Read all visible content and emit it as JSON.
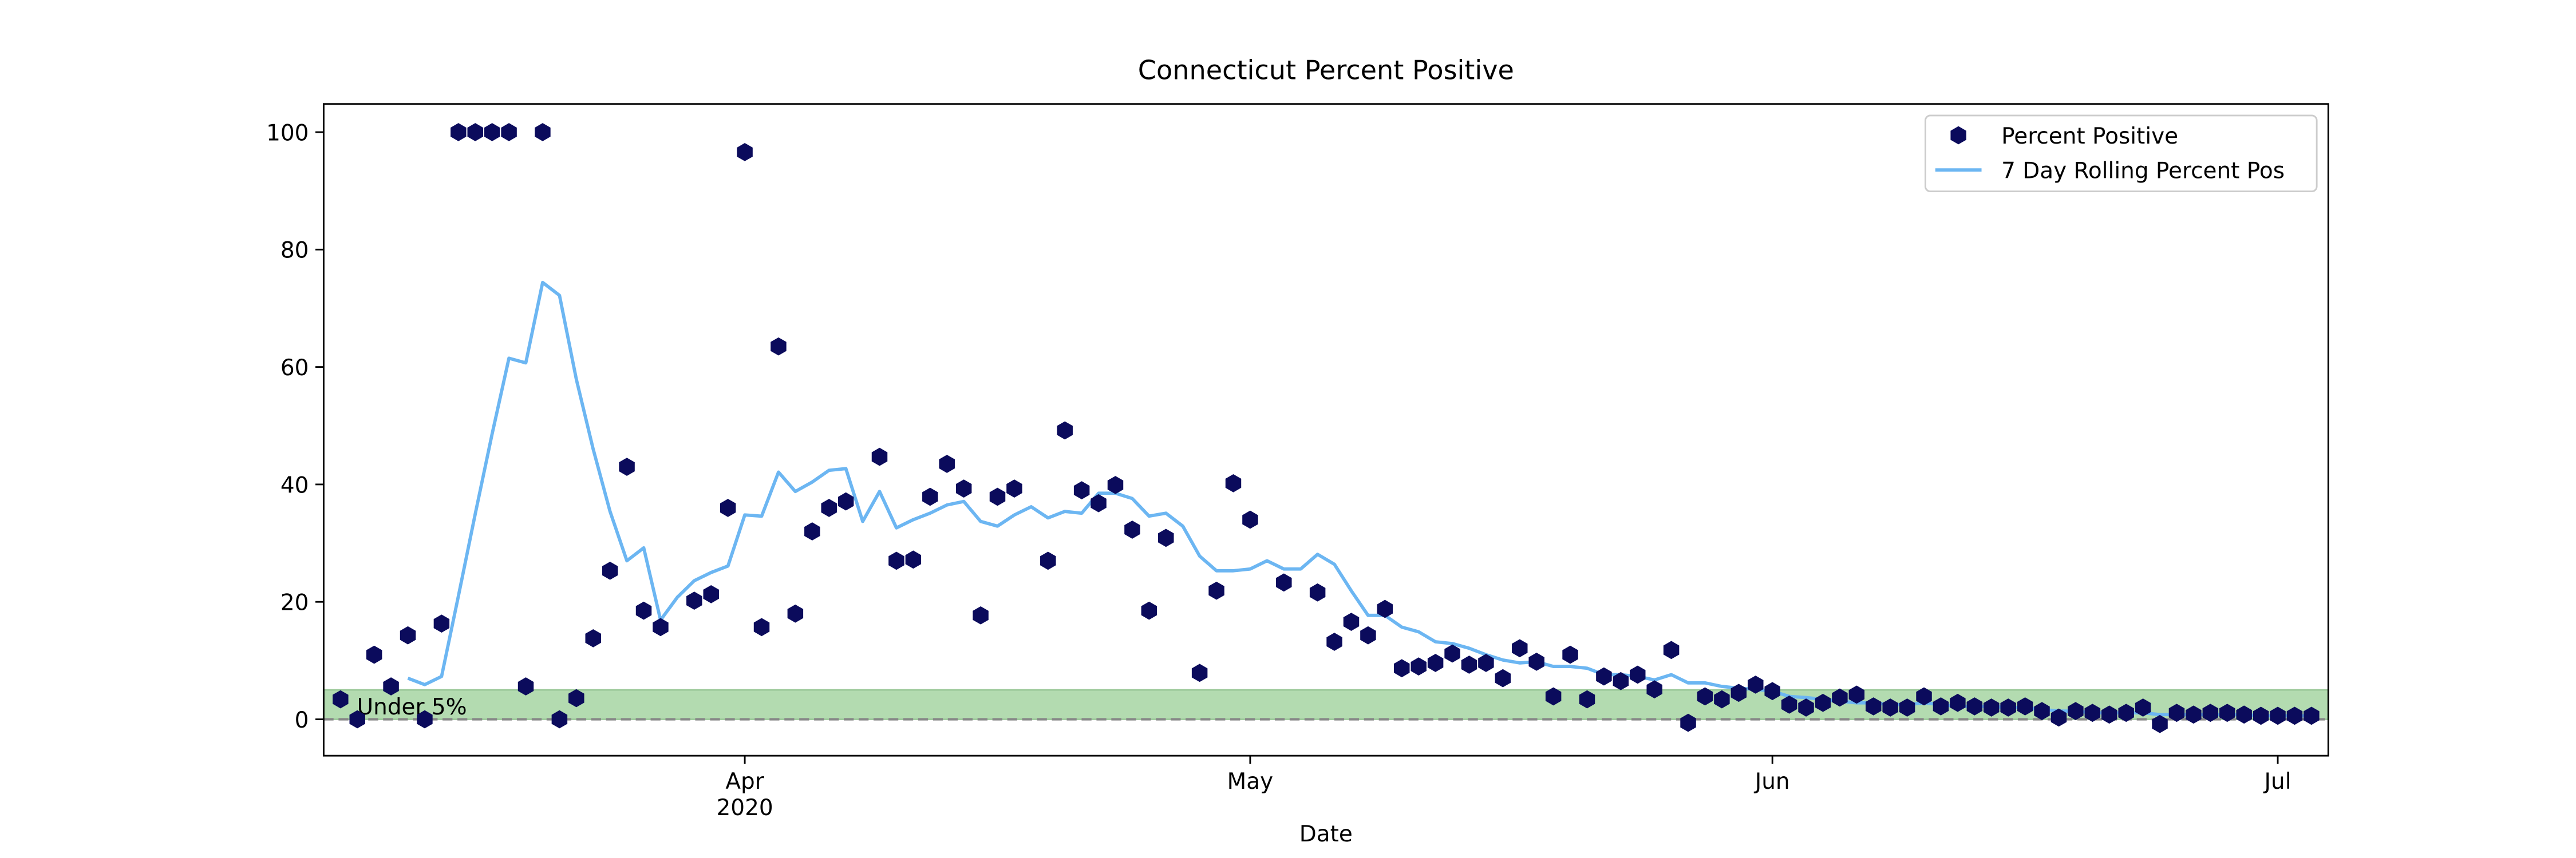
{
  "chart_data": {
    "type": "scatter_line",
    "title": "Connecticut Percent Positive",
    "xlabel": "Date",
    "x": [
      "2020-03-08",
      "2020-03-09",
      "2020-03-10",
      "2020-03-11",
      "2020-03-12",
      "2020-03-13",
      "2020-03-14",
      "2020-03-15",
      "2020-03-16",
      "2020-03-17",
      "2020-03-18",
      "2020-03-19",
      "2020-03-20",
      "2020-03-21",
      "2020-03-22",
      "2020-03-23",
      "2020-03-24",
      "2020-03-25",
      "2020-03-26",
      "2020-03-27",
      "2020-03-28",
      "2020-03-29",
      "2020-03-30",
      "2020-03-31",
      "2020-04-01",
      "2020-04-02",
      "2020-04-03",
      "2020-04-04",
      "2020-04-05",
      "2020-04-06",
      "2020-04-07",
      "2020-04-08",
      "2020-04-09",
      "2020-04-10",
      "2020-04-11",
      "2020-04-12",
      "2020-04-13",
      "2020-04-14",
      "2020-04-15",
      "2020-04-16",
      "2020-04-17",
      "2020-04-18",
      "2020-04-19",
      "2020-04-20",
      "2020-04-21",
      "2020-04-22",
      "2020-04-23",
      "2020-04-24",
      "2020-04-25",
      "2020-04-26",
      "2020-04-27",
      "2020-04-28",
      "2020-04-29",
      "2020-04-30",
      "2020-05-01",
      "2020-05-02",
      "2020-05-03",
      "2020-05-04",
      "2020-05-05",
      "2020-05-06",
      "2020-05-07",
      "2020-05-08",
      "2020-05-09",
      "2020-05-10",
      "2020-05-11",
      "2020-05-12",
      "2020-05-13",
      "2020-05-14",
      "2020-05-15",
      "2020-05-16",
      "2020-05-17",
      "2020-05-18",
      "2020-05-19",
      "2020-05-20",
      "2020-05-21",
      "2020-05-22",
      "2020-05-23",
      "2020-05-24",
      "2020-05-25",
      "2020-05-26",
      "2020-05-27",
      "2020-05-28",
      "2020-05-29",
      "2020-05-30",
      "2020-05-31",
      "2020-06-01",
      "2020-06-02",
      "2020-06-03",
      "2020-06-04",
      "2020-06-05",
      "2020-06-06",
      "2020-06-07",
      "2020-06-08",
      "2020-06-09",
      "2020-06-10",
      "2020-06-11",
      "2020-06-12",
      "2020-06-13",
      "2020-06-14",
      "2020-06-15",
      "2020-06-16",
      "2020-06-17",
      "2020-06-18",
      "2020-06-19",
      "2020-06-20",
      "2020-06-21",
      "2020-06-22",
      "2020-06-23",
      "2020-06-24",
      "2020-06-25",
      "2020-06-26",
      "2020-06-27",
      "2020-06-28",
      "2020-06-29",
      "2020-06-30",
      "2020-07-01",
      "2020-07-02",
      "2020-07-03"
    ],
    "series": [
      {
        "name": "Percent Positive",
        "type": "scatter",
        "color": "#0b0b5c",
        "marker": "hexagon",
        "values": [
          3.4,
          0,
          11,
          5.6,
          14.3,
          0,
          16.3,
          100,
          100,
          100,
          100,
          5.6,
          100,
          0,
          3.6,
          13.8,
          25.3,
          43,
          18.5,
          15.7,
          null,
          20.2,
          21.3,
          36,
          96.6,
          15.7,
          63.5,
          18,
          32,
          36,
          37.1,
          null,
          44.7,
          27,
          27.2,
          37.9,
          43.5,
          39.3,
          17.7,
          37.9,
          39.3,
          null,
          27,
          49.2,
          39,
          36.8,
          39.9,
          32.3,
          18.5,
          30.9,
          null,
          7.9,
          21.9,
          40.2,
          34,
          null,
          23.3,
          null,
          21.6,
          13.2,
          16.6,
          14.3,
          18.8,
          8.7,
          9,
          9.6,
          11.2,
          9.3,
          9.6,
          7,
          12.1,
          9.8,
          3.9,
          11,
          3.4,
          7.3,
          6.5,
          7.6,
          5.1,
          11.8,
          -0.6,
          3.9,
          3.4,
          4.5,
          5.9,
          4.8,
          2.5,
          2,
          2.8,
          3.7,
          4.2,
          2.2,
          2,
          2,
          3.9,
          2.2,
          2.8,
          2.2,
          2,
          2,
          2.2,
          1.4,
          0.3,
          1.4,
          1.1,
          0.8,
          1.1,
          2,
          -0.8,
          1.1,
          0.8,
          1.1,
          1.1,
          0.8,
          0.6,
          0.6,
          0.6,
          0.6
        ]
      },
      {
        "name": "7 Day Rolling Percent Pos",
        "type": "line",
        "color": "#6cb6f2",
        "values": [
          null,
          null,
          null,
          null,
          7,
          5.9,
          7.3,
          21,
          35,
          48.6,
          61.5,
          60.7,
          74.4,
          72.2,
          57.9,
          46,
          35.4,
          27,
          29.2,
          16.9,
          20.8,
          23.6,
          25,
          26.1,
          34.8,
          34.6,
          42.1,
          38.8,
          40.4,
          42.4,
          42.7,
          33.7,
          38.8,
          32.6,
          34,
          35.1,
          36.5,
          37.1,
          33.7,
          32.9,
          34.8,
          36.2,
          34.3,
          35.4,
          35.1,
          38.5,
          38.5,
          37.6,
          34.6,
          35.1,
          32.9,
          27.8,
          25.3,
          25.3,
          25.6,
          27,
          25.6,
          25.6,
          28.1,
          26.4,
          21.9,
          17.7,
          17.7,
          15.7,
          14.9,
          13.2,
          12.9,
          12.1,
          11,
          10.1,
          9.6,
          9.8,
          9,
          9,
          8.7,
          7.6,
          7.6,
          7.3,
          6.7,
          7.6,
          6.2,
          6.2,
          5.6,
          5.3,
          5.1,
          4.8,
          3.9,
          3.7,
          3.4,
          3.1,
          2.8,
          2.8,
          2.5,
          2.5,
          2.8,
          2.5,
          2.2,
          2.2,
          2.2,
          2,
          2,
          1.7,
          1.4,
          1.4,
          1.1,
          1.1,
          1.1,
          1.1,
          0.8,
          0.8,
          0.8,
          0.8,
          0.8,
          0.8,
          0.6,
          0.6,
          0.6,
          0.6
        ]
      }
    ],
    "band": {
      "from": 0,
      "to": 5,
      "label": "Under 5%",
      "color": "#b3dbb0"
    },
    "hline": {
      "value": 0,
      "color": "#888888",
      "dashed": true
    },
    "xlim": [
      "2020-03-07",
      "2020-07-04"
    ],
    "xticks": [
      {
        "value": "2020-04-01",
        "label": "Apr\n2020"
      },
      {
        "value": "2020-05-01",
        "label": "May"
      },
      {
        "value": "2020-06-01",
        "label": "Jun"
      },
      {
        "value": "2020-07-01",
        "label": "Jul"
      }
    ],
    "ylim": [
      -6.2,
      104.8
    ],
    "yticks": [
      0,
      20,
      40,
      60,
      80,
      100
    ],
    "grid": false,
    "legend": "upper right"
  }
}
